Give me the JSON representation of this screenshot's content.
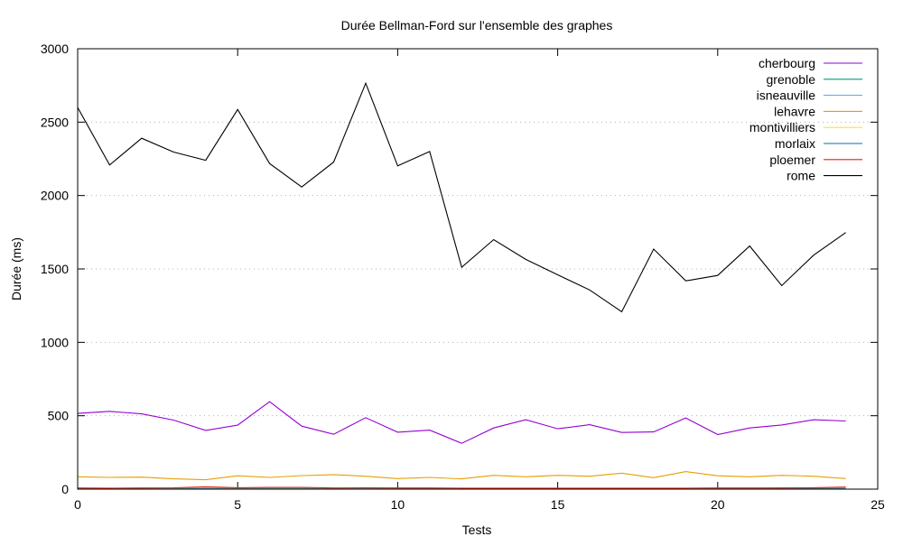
{
  "chart_data": {
    "type": "line",
    "title": "Durée Bellman-Ford sur l'ensemble des graphes",
    "xlabel": "Tests",
    "ylabel": "Durée (ms)",
    "xlim": [
      0,
      25
    ],
    "ylim": [
      0,
      3000
    ],
    "xticks": [
      0,
      5,
      10,
      15,
      20,
      25
    ],
    "yticks": [
      0,
      500,
      1000,
      1500,
      2000,
      2500,
      3000
    ],
    "grid": "horizontal dotted",
    "legend_position": "top-right inside",
    "x": [
      0,
      1,
      2,
      3,
      4,
      5,
      6,
      7,
      8,
      9,
      10,
      11,
      12,
      13,
      14,
      15,
      16,
      17,
      18,
      19,
      20,
      21,
      22,
      23,
      24
    ],
    "series": [
      {
        "name": "cherbourg",
        "color": "#9400d3",
        "values": [
          516,
          530,
          513,
          470,
          400,
          436,
          596,
          429,
          374,
          487,
          388,
          402,
          312,
          417,
          473,
          411,
          439,
          386,
          390,
          485,
          372,
          417,
          437,
          473,
          464
        ]
      },
      {
        "name": "grenoble",
        "color": "#009e73",
        "values": [
          3,
          3,
          3,
          3,
          4,
          3,
          4,
          4,
          3,
          3,
          3,
          3,
          3,
          3,
          3,
          3,
          3,
          3,
          3,
          3,
          3,
          4,
          8,
          8,
          10
        ]
      },
      {
        "name": "isneauville",
        "color": "#56b4e9",
        "values": [
          5,
          6,
          5,
          5,
          6,
          5,
          6,
          6,
          5,
          5,
          5,
          5,
          5,
          5,
          5,
          5,
          5,
          5,
          5,
          5,
          5,
          6,
          6,
          7,
          9
        ]
      },
      {
        "name": "lehavre",
        "color": "#e69f00",
        "values": [
          84,
          80,
          82,
          70,
          64,
          91,
          80,
          92,
          99,
          88,
          72,
          80,
          70,
          94,
          84,
          94,
          88,
          109,
          78,
          119,
          91,
          84,
          94,
          88,
          72
        ]
      },
      {
        "name": "montivilliers",
        "color": "#f0e442",
        "values": [
          2,
          2,
          2,
          2,
          3,
          2,
          2,
          2,
          2,
          2,
          2,
          2,
          2,
          2,
          2,
          2,
          2,
          2,
          2,
          2,
          2,
          2,
          2,
          3,
          4
        ]
      },
      {
        "name": "morlaix",
        "color": "#0072b2",
        "values": [
          1,
          1,
          1,
          1,
          2,
          1,
          1,
          1,
          1,
          1,
          1,
          1,
          1,
          1,
          1,
          1,
          1,
          1,
          1,
          1,
          1,
          1,
          1,
          2,
          2
        ]
      },
      {
        "name": "ploemer",
        "color": "#e51e10",
        "values": [
          8,
          7,
          8,
          9,
          16,
          10,
          12,
          12,
          8,
          9,
          8,
          8,
          7,
          7,
          7,
          7,
          7,
          7,
          7,
          7,
          8,
          8,
          8,
          10,
          14
        ]
      },
      {
        "name": "rome",
        "color": "#000000",
        "values": [
          2600,
          2208,
          2390,
          2296,
          2240,
          2586,
          2218,
          2058,
          2228,
          2765,
          2202,
          2300,
          1511,
          1700,
          1565,
          1460,
          1357,
          1208,
          1635,
          1419,
          1456,
          1656,
          1386,
          1594,
          1748
        ]
      }
    ]
  }
}
